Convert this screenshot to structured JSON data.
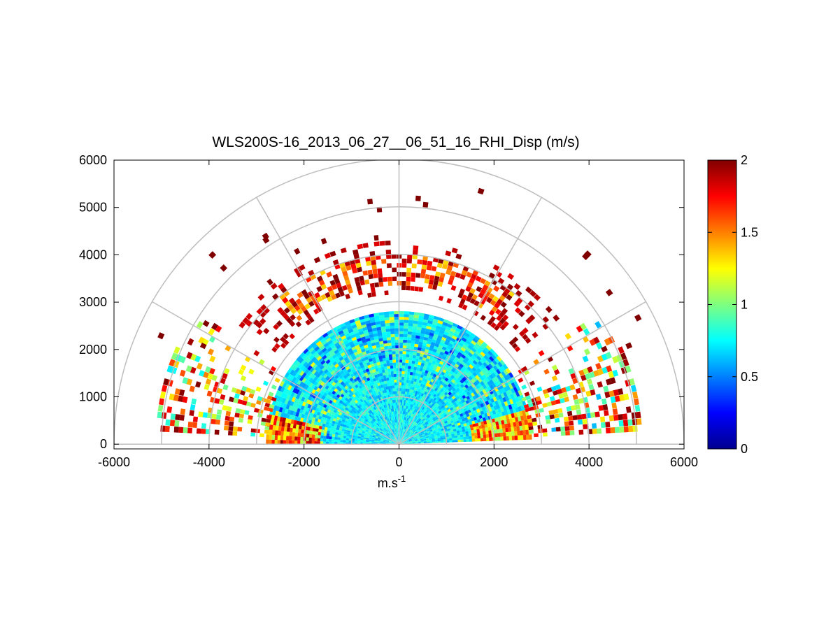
{
  "chart_data": {
    "type": "heatmap",
    "subtype": "polar-rhi-sector",
    "title": "WLS200S-16_2013_06_27__06_51_16_RHI_Disp (m/s)",
    "xlabel": "m.s",
    "xlabel_superscript": "-1",
    "ylabel": "",
    "xlim": [
      -6000,
      6000
    ],
    "ylim": [
      -100,
      6000
    ],
    "x_ticks": [
      -6000,
      -4000,
      -2000,
      0,
      2000,
      4000,
      6000
    ],
    "x_tick_labels": [
      "-6000",
      "-4000",
      "-2000",
      "0",
      "2000",
      "4000",
      "6000"
    ],
    "y_ticks": [
      0,
      1000,
      2000,
      3000,
      4000,
      5000,
      6000
    ],
    "y_tick_labels": [
      "0",
      "1000",
      "2000",
      "3000",
      "4000",
      "5000",
      "6000"
    ],
    "polar_grid": {
      "range_rings": [
        1000,
        2000,
        3000,
        4000,
        5000,
        6000
      ],
      "spoke_angles_deg": [
        0,
        30,
        60,
        90,
        120,
        150,
        180
      ]
    },
    "colorbar": {
      "colormap": "jet",
      "range": [
        0,
        2
      ],
      "ticks": [
        0,
        0.5,
        1,
        1.5,
        2
      ],
      "tick_labels": [
        "0",
        "0.5",
        "1",
        "1.5",
        "2"
      ]
    },
    "data_regions": [
      {
        "description": "near field",
        "range": [
          0,
          1300
        ],
        "elevation_deg": [
          3,
          177
        ],
        "mean_value": 0.65
      },
      {
        "description": "main lower layer",
        "range": [
          1300,
          2800
        ],
        "elevation_deg": [
          3,
          177
        ],
        "mean_value": 0.75
      },
      {
        "description": "low-elevation flanks",
        "range": [
          2800,
          5000
        ],
        "elevation_deg": [
          4,
          32
        ],
        "mean_value": 1.5
      },
      {
        "description": "upper layer",
        "range": [
          3100,
          4200
        ],
        "elevation_deg": [
          40,
          140
        ],
        "mean_value": 1.8
      }
    ],
    "grid": true
  },
  "colors": {
    "axis": "#000000",
    "polar_grid": "#bebebe",
    "background": "#ffffff"
  }
}
